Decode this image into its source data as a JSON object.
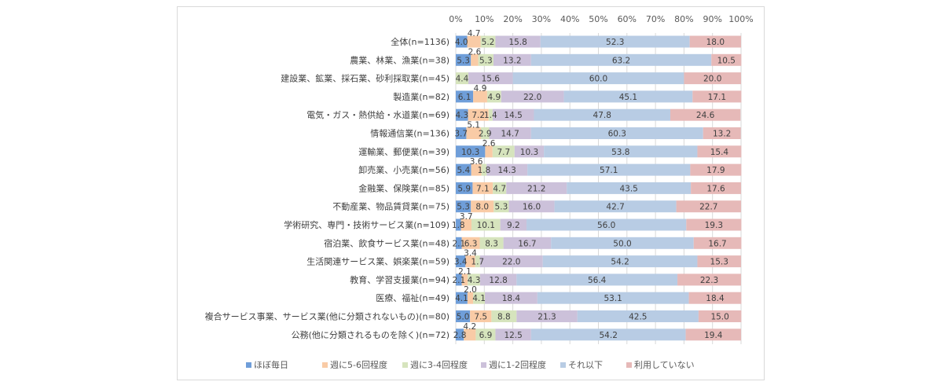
{
  "chart_data": {
    "type": "bar",
    "orientation": "horizontal",
    "stacked": "percent",
    "title": "",
    "xlabel": "",
    "ylabel": "",
    "xlim": [
      0,
      100
    ],
    "x_ticks": [
      "0%",
      "10%",
      "20%",
      "30%",
      "40%",
      "50%",
      "60%",
      "70%",
      "80%",
      "90%",
      "100%"
    ],
    "grid": true,
    "legend_position": "bottom",
    "categories": [
      "全体(n=1136)",
      "農業、林業、漁業(n=38)",
      "建設業、鉱業、採石業、砂利採取業(n=45)",
      "製造業(n=82)",
      "電気・ガス・熱供給・水道業(n=69)",
      "情報通信業(n=136)",
      "運輸業、郵便業(n=39)",
      "卸売業、小売業(n=56)",
      "金融業、保険業(n=85)",
      "不動産業、物品賃貸業(n=75)",
      "学術研究、専門・技術サービス業(n=109)",
      "宿泊業、飲食サービス業(n=48)",
      "生活関連サービス業、娯楽業(n=59)",
      "教育、学習支援業(n=94)",
      "医療、福祉(n=49)",
      "複合サービス事業、サービス業(他に分類されないもの)(n=80)",
      "公務(他に分類されるものを除く)(n=72)"
    ],
    "series": [
      {
        "name": "ほぼ毎日",
        "color": "#6f9ed9",
        "values": [
          4.0,
          5.3,
          0,
          6.1,
          4.3,
          3.7,
          10.3,
          5.4,
          5.9,
          5.3,
          1.8,
          2.1,
          3.4,
          2.1,
          4.1,
          5.0,
          2.8
        ]
      },
      {
        "name": "週に5-6回程度",
        "color": "#f9cba6",
        "values": [
          4.7,
          2.6,
          0,
          4.9,
          7.2,
          5.1,
          2.6,
          3.6,
          7.1,
          8.0,
          3.7,
          6.3,
          3.4,
          2.1,
          2.0,
          7.5,
          4.2
        ]
      },
      {
        "name": "週に3-4回程度",
        "color": "#d6e4bd",
        "values": [
          5.2,
          5.3,
          4.4,
          4.9,
          1.4,
          2.9,
          7.7,
          1.8,
          4.7,
          5.3,
          10.1,
          8.3,
          1.7,
          4.3,
          4.1,
          8.8,
          6.9
        ]
      },
      {
        "name": "週に1-2回程度",
        "color": "#ccc1da",
        "values": [
          15.8,
          13.2,
          15.6,
          22.0,
          14.5,
          14.7,
          10.3,
          14.3,
          21.2,
          16.0,
          9.2,
          16.7,
          22.0,
          12.8,
          18.4,
          21.3,
          12.5
        ]
      },
      {
        "name": "それ以下",
        "color": "#b8cce4",
        "values": [
          52.3,
          63.2,
          60.0,
          45.1,
          47.8,
          60.3,
          53.8,
          57.1,
          43.5,
          42.7,
          56.0,
          50.0,
          54.2,
          56.4,
          53.1,
          42.5,
          54.2
        ]
      },
      {
        "name": "利用していない",
        "color": "#e6b9b8",
        "values": [
          18.0,
          10.5,
          20.0,
          17.1,
          24.6,
          13.2,
          15.4,
          17.9,
          17.6,
          22.7,
          19.3,
          16.7,
          15.3,
          22.3,
          18.4,
          15.0,
          19.4
        ]
      }
    ],
    "label_format": "0.0"
  }
}
